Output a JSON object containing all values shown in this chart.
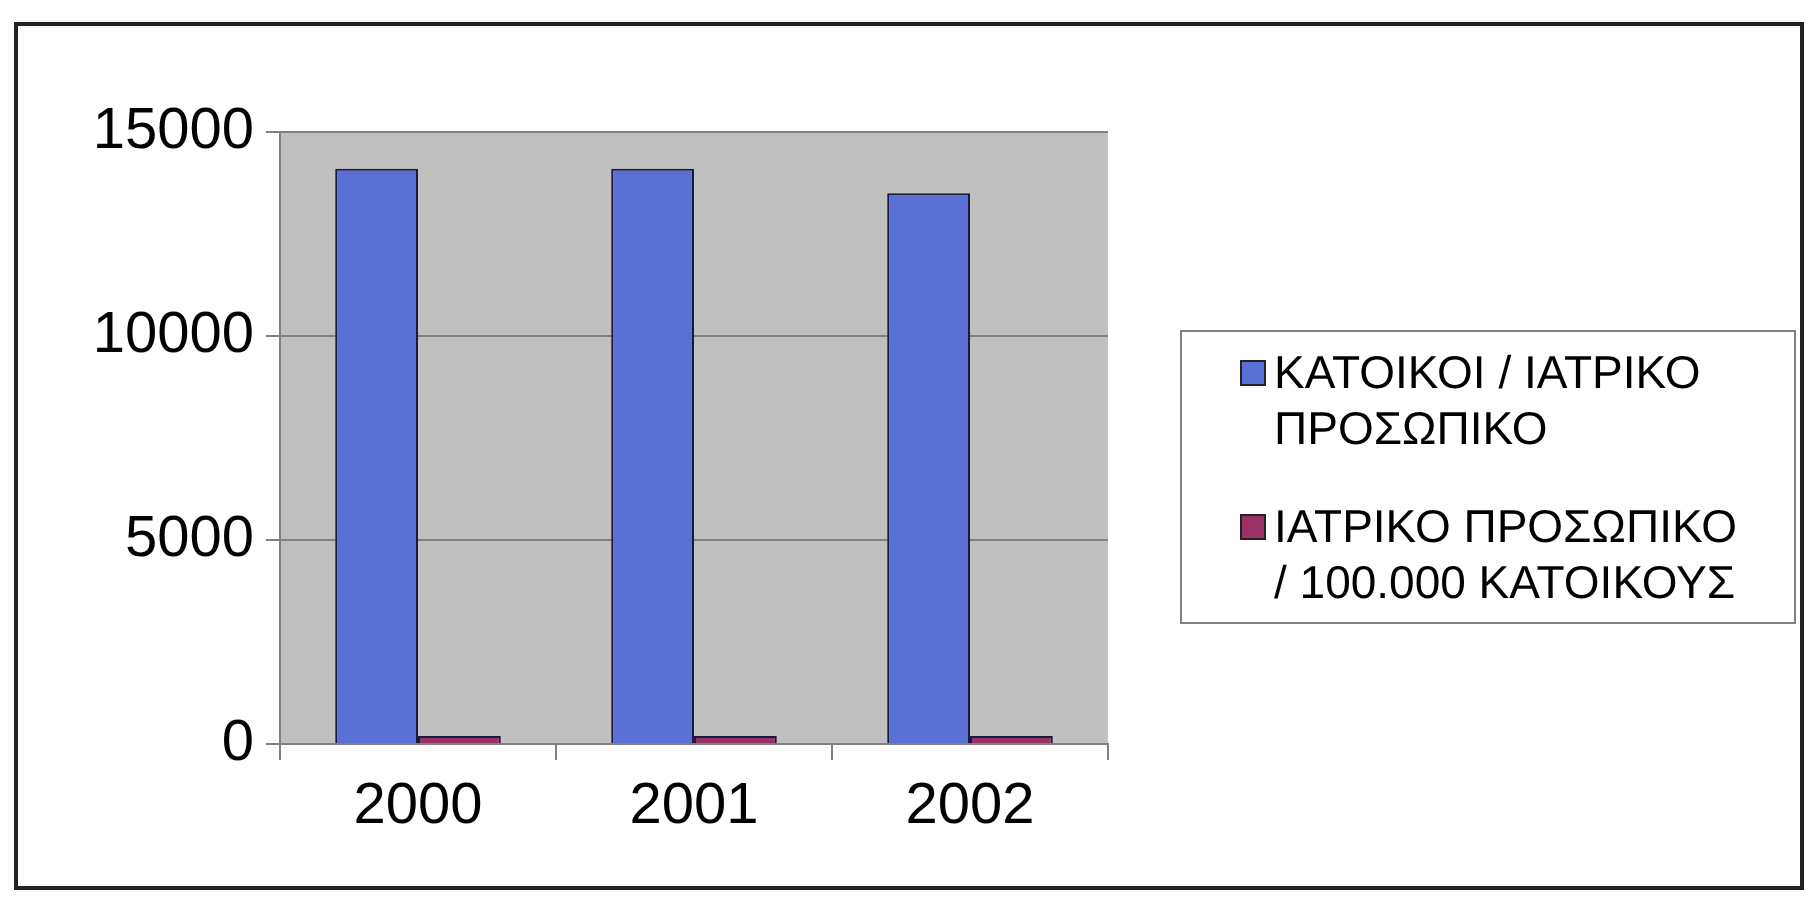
{
  "chart_data": {
    "type": "bar",
    "categories": [
      "2000",
      "2001",
      "2002"
    ],
    "series": [
      {
        "name": "ΚΑΤΟΙΚΟΙ / ΙΑΤΡΙΚΟ ΠΡΟΣΩΠΙΚΟ",
        "color": "#5b70d5",
        "values": [
          14100,
          14100,
          13500
        ]
      },
      {
        "name": "ΙΑΤΡΙΚΟ ΠΡΟΣΩΠΙΚΟ / 100.000 ΚΑΤΟΙΚΟΥΣ",
        "color": "#993366",
        "values": [
          0,
          0,
          0
        ]
      }
    ],
    "ylim": [
      0,
      15000
    ],
    "yticks": [
      0,
      5000,
      10000,
      15000
    ],
    "grid": "y",
    "legend": "right"
  }
}
